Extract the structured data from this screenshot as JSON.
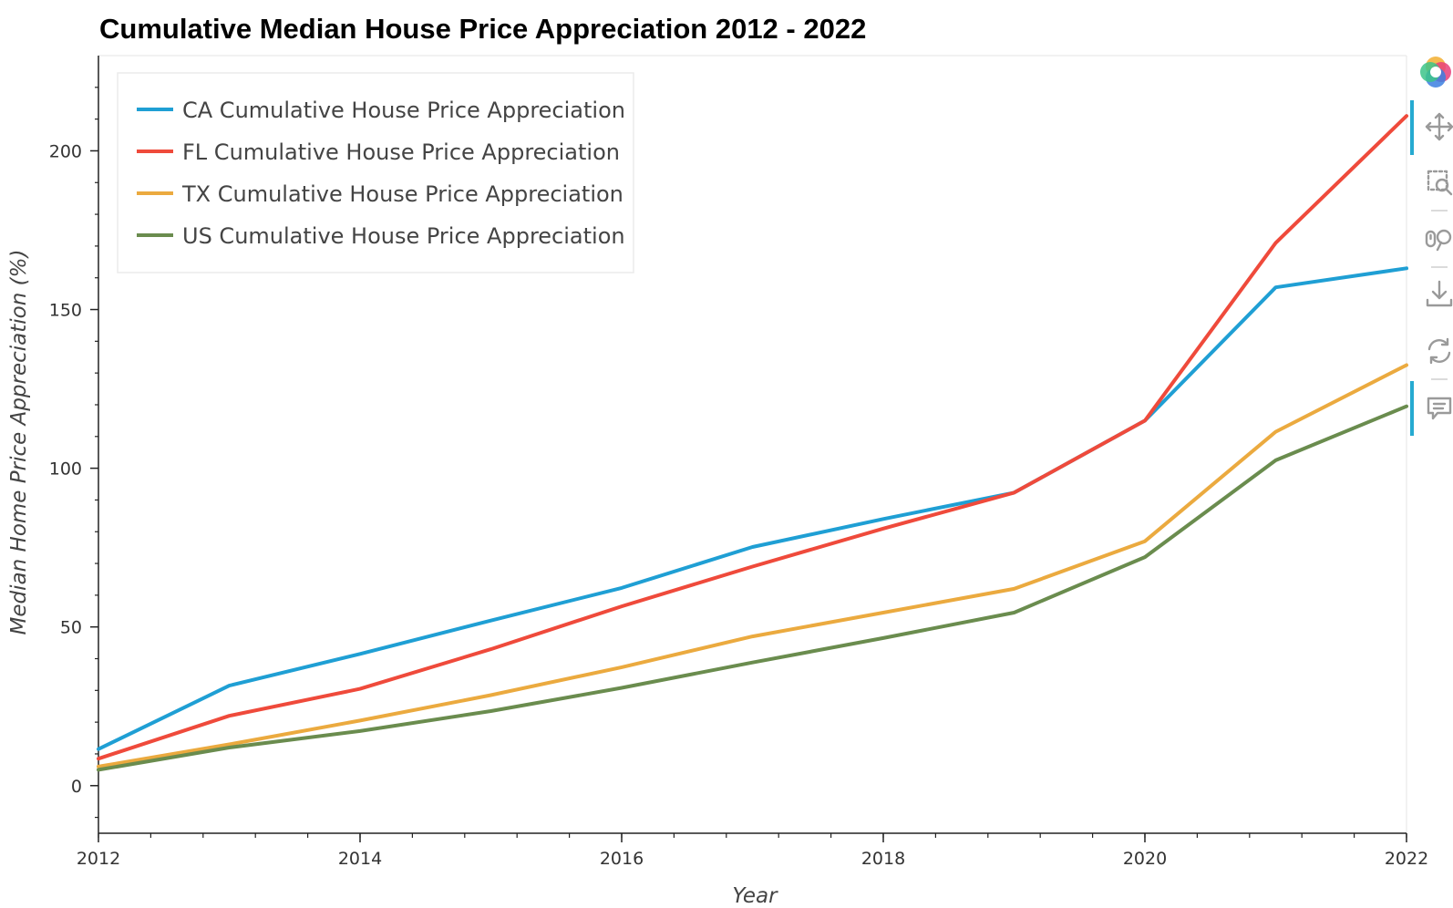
{
  "chart_data": {
    "type": "line",
    "title": "Cumulative Median House Price Appreciation 2012 - 2022",
    "xlabel": "Year",
    "ylabel": "Median Home Price Appreciation (%)",
    "xlim": [
      2012,
      2022
    ],
    "ylim": [
      -15,
      230
    ],
    "x": [
      2012,
      2013,
      2014,
      2015,
      2016,
      2017,
      2018,
      2019,
      2020,
      2021,
      2022
    ],
    "x_ticks": [
      2012,
      2014,
      2016,
      2018,
      2020,
      2022
    ],
    "y_ticks": [
      0,
      50,
      100,
      150,
      200
    ],
    "grid": false,
    "legend_position": "top-left",
    "series": [
      {
        "name": "CA Cumulative House Price Appreciation",
        "color": "#1f9fd4",
        "values": [
          11.5,
          31.5,
          41.5,
          52,
          62.3,
          75.2,
          84,
          92.3,
          115,
          157,
          163
        ]
      },
      {
        "name": "FL Cumulative House Price Appreciation",
        "color": "#ef4a3b",
        "values": [
          8.5,
          22,
          30.5,
          43,
          56.5,
          69,
          81,
          92.3,
          115,
          171,
          211
        ]
      },
      {
        "name": "TX Cumulative House Price Appreciation",
        "color": "#ebaa3f",
        "values": [
          6,
          13,
          20.5,
          28.5,
          37.3,
          47,
          54.5,
          62,
          77,
          111.5,
          132.5
        ]
      },
      {
        "name": "US Cumulative House Price Appreciation",
        "color": "#6a8c4e",
        "values": [
          5,
          12,
          17.2,
          23.5,
          30.8,
          38.8,
          46.5,
          54.5,
          72,
          102.5,
          119.5
        ]
      }
    ]
  },
  "toolbar": {
    "tools": [
      "logo-icon",
      "pan-icon",
      "box-zoom-icon",
      "wheel-zoom-icon",
      "save-icon",
      "reset-icon",
      "hover-icon"
    ],
    "active_color": "#26aad1"
  }
}
